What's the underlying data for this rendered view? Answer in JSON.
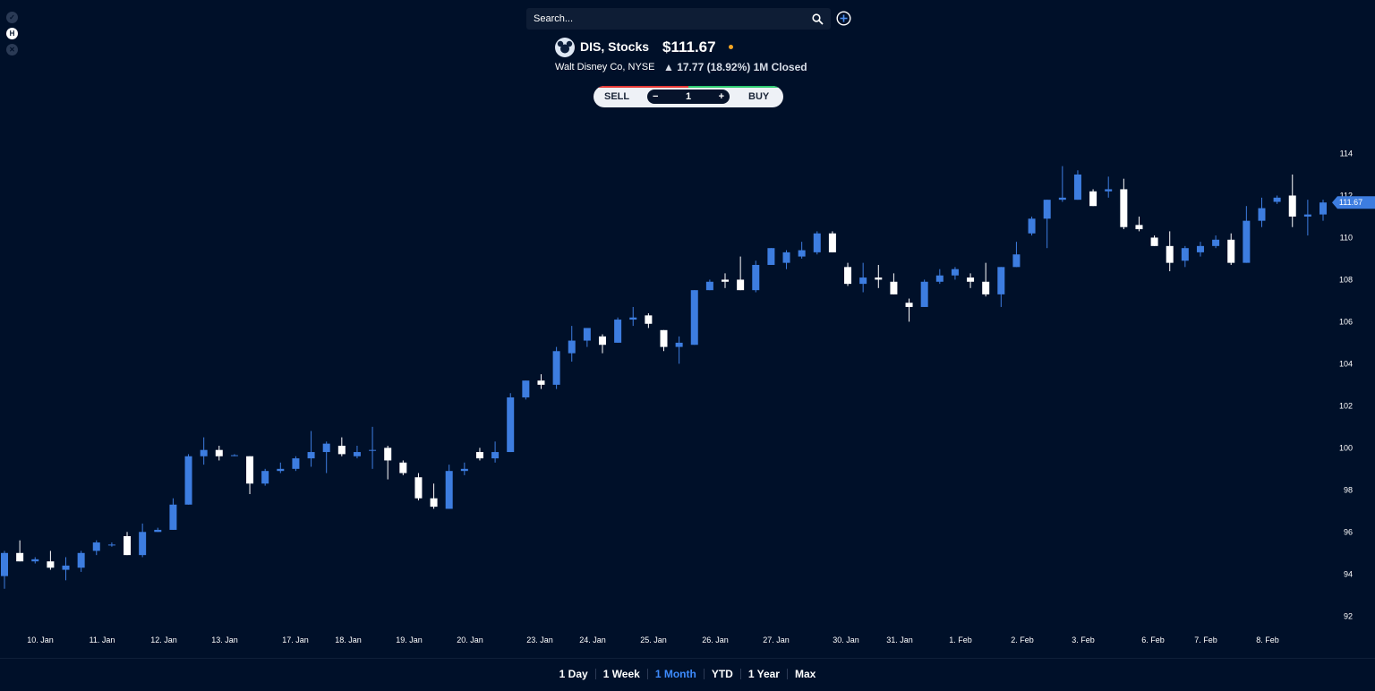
{
  "search": {
    "placeholder": "Search..."
  },
  "side_icons": [
    "check-icon",
    "hl-icon",
    "close-icon"
  ],
  "header": {
    "symbol": "DIS, Stocks",
    "price": "$111.67",
    "company": "Walt Disney Co, NYSE",
    "change": "▲ 17.77 (18.92%) 1M Closed"
  },
  "trade": {
    "sell": "SELL",
    "buy": "BUY",
    "minus": "−",
    "plus": "+",
    "quantity": "1"
  },
  "periods": [
    {
      "label": "1 Day",
      "active": false
    },
    {
      "label": "1 Week",
      "active": false
    },
    {
      "label": "1 Month",
      "active": true
    },
    {
      "label": "YTD",
      "active": false
    },
    {
      "label": "1 Year",
      "active": false
    },
    {
      "label": "Max",
      "active": false
    }
  ],
  "colors": {
    "background": "#001029",
    "up": "#3d7de0",
    "down": "#ffffff",
    "accent": "#3d8bfd",
    "price_tag": "#3d7de0"
  },
  "chart_data": {
    "type": "candlestick",
    "ylim": [
      91.5,
      115
    ],
    "yticks": [
      92,
      94,
      96,
      98,
      100,
      102,
      104,
      106,
      108,
      110,
      112,
      114
    ],
    "last_price": 111.67,
    "last_price_label": "111.67",
    "date_labels": [
      "10. Jan",
      "11. Jan",
      "12. Jan",
      "13. Jan",
      "17. Jan",
      "18. Jan",
      "19. Jan",
      "20. Jan",
      "23. Jan",
      "24. Jan",
      "25. Jan",
      "26. Jan",
      "27. Jan",
      "30. Jan",
      "31. Jan",
      "1. Feb",
      "2. Feb",
      "3. Feb",
      "6. Feb",
      "7. Feb",
      "8. Feb"
    ],
    "candles": [
      {
        "o": 93.9,
        "h": 95.1,
        "l": 93.3,
        "c": 95.0
      },
      {
        "o": 95.0,
        "h": 95.6,
        "l": 94.6,
        "c": 94.6
      },
      {
        "o": 94.6,
        "h": 94.8,
        "l": 94.5,
        "c": 94.7
      },
      {
        "o": 94.6,
        "h": 95.1,
        "l": 94.2,
        "c": 94.3
      },
      {
        "o": 94.2,
        "h": 94.8,
        "l": 93.7,
        "c": 94.4
      },
      {
        "o": 94.3,
        "h": 95.1,
        "l": 94.1,
        "c": 95.0
      },
      {
        "o": 95.1,
        "h": 95.6,
        "l": 94.9,
        "c": 95.5
      },
      {
        "o": 95.4,
        "h": 95.5,
        "l": 95.3,
        "c": 95.4
      },
      {
        "o": 95.8,
        "h": 96.0,
        "l": 94.9,
        "c": 94.9
      },
      {
        "o": 94.9,
        "h": 96.4,
        "l": 94.8,
        "c": 96.0
      },
      {
        "o": 96.0,
        "h": 96.2,
        "l": 96.0,
        "c": 96.1
      },
      {
        "o": 96.1,
        "h": 97.6,
        "l": 96.1,
        "c": 97.3
      },
      {
        "o": 97.3,
        "h": 99.7,
        "l": 97.3,
        "c": 99.6
      },
      {
        "o": 99.6,
        "h": 100.5,
        "l": 99.2,
        "c": 99.9
      },
      {
        "o": 99.9,
        "h": 100.1,
        "l": 99.4,
        "c": 99.6
      },
      {
        "o": 99.65,
        "h": 99.7,
        "l": 99.6,
        "c": 99.65
      },
      {
        "o": 99.6,
        "h": 99.6,
        "l": 97.8,
        "c": 98.3
      },
      {
        "o": 98.3,
        "h": 99.0,
        "l": 98.2,
        "c": 98.9
      },
      {
        "o": 98.9,
        "h": 99.3,
        "l": 98.8,
        "c": 99.0
      },
      {
        "o": 99.0,
        "h": 99.6,
        "l": 98.9,
        "c": 99.5
      },
      {
        "o": 99.5,
        "h": 100.8,
        "l": 99.1,
        "c": 99.8
      },
      {
        "o": 99.8,
        "h": 100.3,
        "l": 98.8,
        "c": 100.2
      },
      {
        "o": 100.1,
        "h": 100.5,
        "l": 99.6,
        "c": 99.7
      },
      {
        "o": 99.6,
        "h": 100.1,
        "l": 99.5,
        "c": 99.8
      },
      {
        "o": 99.9,
        "h": 101.0,
        "l": 99.0,
        "c": 99.9
      },
      {
        "o": 100.0,
        "h": 100.1,
        "l": 98.5,
        "c": 99.4
      },
      {
        "o": 99.3,
        "h": 99.4,
        "l": 98.7,
        "c": 98.8
      },
      {
        "o": 98.6,
        "h": 98.8,
        "l": 97.5,
        "c": 97.6
      },
      {
        "o": 97.6,
        "h": 98.3,
        "l": 97.1,
        "c": 97.2
      },
      {
        "o": 97.1,
        "h": 99.2,
        "l": 97.1,
        "c": 98.9
      },
      {
        "o": 98.9,
        "h": 99.3,
        "l": 98.7,
        "c": 99.0
      },
      {
        "o": 99.8,
        "h": 100.0,
        "l": 99.4,
        "c": 99.5
      },
      {
        "o": 99.5,
        "h": 100.3,
        "l": 99.3,
        "c": 99.8
      },
      {
        "o": 99.8,
        "h": 102.6,
        "l": 99.8,
        "c": 102.4
      },
      {
        "o": 102.4,
        "h": 103.2,
        "l": 102.3,
        "c": 103.2
      },
      {
        "o": 103.2,
        "h": 103.5,
        "l": 102.8,
        "c": 103.0
      },
      {
        "o": 103.0,
        "h": 104.8,
        "l": 102.8,
        "c": 104.6
      },
      {
        "o": 104.5,
        "h": 105.8,
        "l": 104.1,
        "c": 105.1
      },
      {
        "o": 105.1,
        "h": 105.7,
        "l": 104.8,
        "c": 105.7
      },
      {
        "o": 105.3,
        "h": 105.4,
        "l": 104.5,
        "c": 104.9
      },
      {
        "o": 105.0,
        "h": 106.2,
        "l": 105.0,
        "c": 106.1
      },
      {
        "o": 106.1,
        "h": 106.7,
        "l": 105.8,
        "c": 106.2
      },
      {
        "o": 106.3,
        "h": 106.4,
        "l": 105.7,
        "c": 105.9
      },
      {
        "o": 105.6,
        "h": 105.6,
        "l": 104.6,
        "c": 104.8
      },
      {
        "o": 104.8,
        "h": 105.3,
        "l": 104.0,
        "c": 105.0
      },
      {
        "o": 104.9,
        "h": 107.5,
        "l": 104.9,
        "c": 107.5
      },
      {
        "o": 107.5,
        "h": 108.0,
        "l": 107.5,
        "c": 107.9
      },
      {
        "o": 108.0,
        "h": 108.3,
        "l": 107.6,
        "c": 107.9
      },
      {
        "o": 108.0,
        "h": 109.1,
        "l": 107.5,
        "c": 107.5
      },
      {
        "o": 107.5,
        "h": 108.9,
        "l": 107.4,
        "c": 108.7
      },
      {
        "o": 108.7,
        "h": 109.5,
        "l": 108.7,
        "c": 109.5
      },
      {
        "o": 108.8,
        "h": 109.4,
        "l": 108.5,
        "c": 109.3
      },
      {
        "o": 109.1,
        "h": 109.8,
        "l": 109.0,
        "c": 109.4
      },
      {
        "o": 109.3,
        "h": 110.3,
        "l": 109.2,
        "c": 110.2
      },
      {
        "o": 110.2,
        "h": 110.3,
        "l": 109.3,
        "c": 109.3
      },
      {
        "o": 108.6,
        "h": 108.8,
        "l": 107.7,
        "c": 107.8
      },
      {
        "o": 107.8,
        "h": 108.8,
        "l": 107.4,
        "c": 108.1
      },
      {
        "o": 108.1,
        "h": 108.7,
        "l": 107.6,
        "c": 108.0
      },
      {
        "o": 107.9,
        "h": 108.3,
        "l": 107.3,
        "c": 107.3
      },
      {
        "o": 106.9,
        "h": 107.1,
        "l": 106.0,
        "c": 106.7
      },
      {
        "o": 106.7,
        "h": 108.0,
        "l": 106.7,
        "c": 107.9
      },
      {
        "o": 107.9,
        "h": 108.5,
        "l": 107.8,
        "c": 108.2
      },
      {
        "o": 108.2,
        "h": 108.6,
        "l": 108.0,
        "c": 108.5
      },
      {
        "o": 108.1,
        "h": 108.3,
        "l": 107.6,
        "c": 107.9
      },
      {
        "o": 107.9,
        "h": 108.8,
        "l": 107.2,
        "c": 107.3
      },
      {
        "o": 107.3,
        "h": 108.6,
        "l": 106.7,
        "c": 108.6
      },
      {
        "o": 108.6,
        "h": 109.8,
        "l": 108.6,
        "c": 109.2
      },
      {
        "o": 110.2,
        "h": 111.0,
        "l": 110.1,
        "c": 110.9
      },
      {
        "o": 110.9,
        "h": 111.8,
        "l": 109.5,
        "c": 111.8
      },
      {
        "o": 111.8,
        "h": 113.4,
        "l": 111.7,
        "c": 111.9
      },
      {
        "o": 111.8,
        "h": 113.2,
        "l": 111.8,
        "c": 113.0
      },
      {
        "o": 112.2,
        "h": 112.3,
        "l": 111.5,
        "c": 111.5
      },
      {
        "o": 112.2,
        "h": 112.9,
        "l": 111.9,
        "c": 112.3
      },
      {
        "o": 112.3,
        "h": 112.8,
        "l": 110.4,
        "c": 110.5
      },
      {
        "o": 110.6,
        "h": 111.0,
        "l": 110.3,
        "c": 110.4
      },
      {
        "o": 110.0,
        "h": 110.1,
        "l": 109.6,
        "c": 109.6
      },
      {
        "o": 109.6,
        "h": 110.3,
        "l": 108.4,
        "c": 108.8
      },
      {
        "o": 108.9,
        "h": 109.6,
        "l": 108.6,
        "c": 109.5
      },
      {
        "o": 109.3,
        "h": 109.8,
        "l": 109.1,
        "c": 109.6
      },
      {
        "o": 109.6,
        "h": 110.1,
        "l": 109.5,
        "c": 109.9
      },
      {
        "o": 109.9,
        "h": 110.2,
        "l": 108.7,
        "c": 108.8
      },
      {
        "o": 108.8,
        "h": 111.5,
        "l": 108.8,
        "c": 110.8
      },
      {
        "o": 110.8,
        "h": 111.9,
        "l": 110.5,
        "c": 111.4
      },
      {
        "o": 111.7,
        "h": 112.0,
        "l": 111.6,
        "c": 111.9
      },
      {
        "o": 112.0,
        "h": 113.0,
        "l": 110.5,
        "c": 111.0
      },
      {
        "o": 111.0,
        "h": 111.8,
        "l": 110.1,
        "c": 111.1
      },
      {
        "o": 111.1,
        "h": 111.8,
        "l": 110.8,
        "c": 111.67
      }
    ]
  }
}
